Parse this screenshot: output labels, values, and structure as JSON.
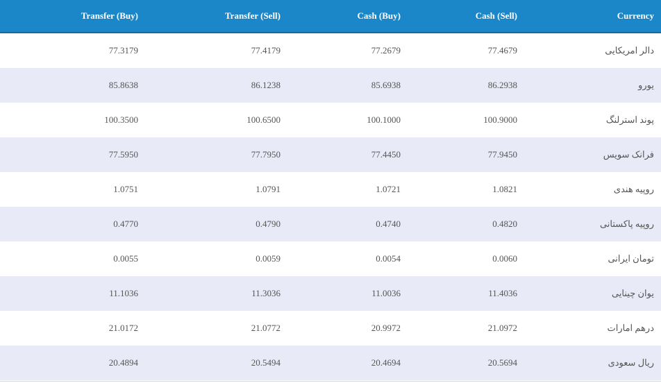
{
  "table": {
    "header": [
      "Transfer (Buy)",
      "Transfer (Sell)",
      "Cash (Buy)",
      "Cash (Sell)",
      "Currency"
    ],
    "rows": [
      [
        "77.3179",
        "77.4179",
        "77.2679",
        "77.4679",
        "دالر امریکایی"
      ],
      [
        "85.8638",
        "86.1238",
        "85.6938",
        "86.2938",
        "یورو"
      ],
      [
        "100.3500",
        "100.6500",
        "100.1000",
        "100.9000",
        "پوند استرلنگ"
      ],
      [
        "77.5950",
        "77.7950",
        "77.4450",
        "77.9450",
        "فرانک سویس"
      ],
      [
        "1.0751",
        "1.0791",
        "1.0721",
        "1.0821",
        "روپیه هندی"
      ],
      [
        "0.4770",
        "0.4790",
        "0.4740",
        "0.4820",
        "روپیه پاکستانی"
      ],
      [
        "0.0055",
        "0.0059",
        "0.0054",
        "0.0060",
        "تومان ایرانی"
      ],
      [
        "11.1036",
        "11.3036",
        "11.0036",
        "11.4036",
        "یوان چینایی"
      ],
      [
        "21.0172",
        "21.0772",
        "20.9972",
        "21.0972",
        "درهم امارات"
      ],
      [
        "20.4894",
        "20.5494",
        "20.4694",
        "20.5694",
        "ریال سعودی"
      ]
    ]
  }
}
